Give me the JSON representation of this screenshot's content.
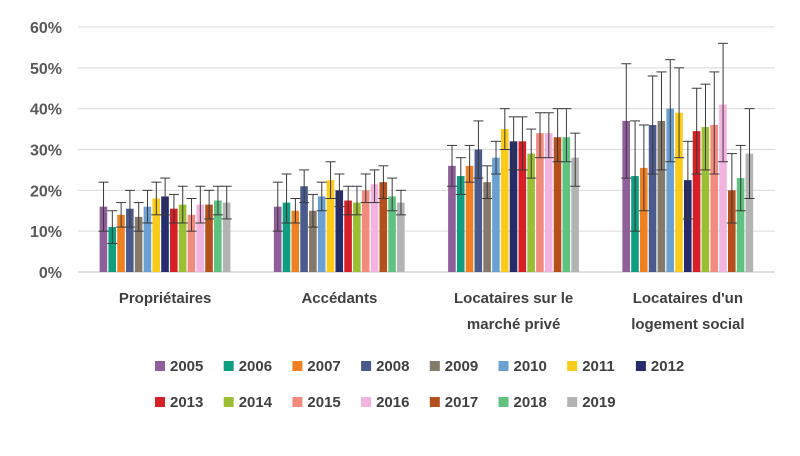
{
  "chart_data": {
    "type": "bar",
    "title": "",
    "xlabel": "",
    "ylabel": "",
    "ylim": [
      0,
      60
    ],
    "yticks": [
      "0%",
      "10%",
      "20%",
      "30%",
      "40%",
      "50%",
      "60%"
    ],
    "grid": "horizontal",
    "legend_position": "bottom",
    "error_bars": true,
    "categories": [
      [
        "Propriétaires"
      ],
      [
        "Accédants"
      ],
      [
        "Locataires sur le",
        "marché privé"
      ],
      [
        "Locataires d'un",
        "logement social"
      ]
    ],
    "series": [
      {
        "name": "2005",
        "color": "#8e5f9a",
        "values": [
          16,
          16,
          26,
          37
        ],
        "err_low": [
          10,
          10,
          21,
          23
        ],
        "err_high": [
          22,
          22,
          31,
          51
        ]
      },
      {
        "name": "2006",
        "color": "#0f9e82",
        "values": [
          11,
          17,
          23.5,
          23.5
        ],
        "err_low": [
          7,
          12,
          19,
          10
        ],
        "err_high": [
          15,
          24,
          28,
          37
        ]
      },
      {
        "name": "2007",
        "color": "#f08122",
        "values": [
          14,
          15,
          26,
          25.5
        ],
        "err_low": [
          11,
          12,
          22,
          15
        ],
        "err_high": [
          17,
          18,
          31,
          36
        ]
      },
      {
        "name": "2008",
        "color": "#4a5a8c",
        "values": [
          15.5,
          21,
          30,
          36
        ],
        "err_low": [
          11,
          17,
          23,
          24
        ],
        "err_high": [
          20,
          25,
          37,
          48
        ]
      },
      {
        "name": "2009",
        "color": "#857969",
        "values": [
          13.5,
          15,
          22,
          37
        ],
        "err_low": [
          10,
          11,
          18,
          25
        ],
        "err_high": [
          17,
          19,
          26,
          49
        ]
      },
      {
        "name": "2010",
        "color": "#6ca0d2",
        "values": [
          16,
          18.5,
          28,
          40
        ],
        "err_low": [
          12,
          15,
          24,
          27
        ],
        "err_high": [
          20,
          22,
          32,
          52
        ]
      },
      {
        "name": "2011",
        "color": "#fbcb19",
        "values": [
          18,
          22.5,
          35,
          39
        ],
        "err_low": [
          14,
          18,
          30,
          28
        ],
        "err_high": [
          22,
          27,
          40,
          50
        ]
      },
      {
        "name": "2012",
        "color": "#262b6b",
        "values": [
          18.5,
          20,
          32,
          22.5
        ],
        "err_low": [
          14,
          16,
          25,
          13
        ],
        "err_high": [
          23,
          24,
          38,
          32
        ]
      },
      {
        "name": "2013",
        "color": "#d61f26",
        "values": [
          15.5,
          17.5,
          32,
          34.5
        ],
        "err_low": [
          12,
          14,
          25,
          24
        ],
        "err_high": [
          19,
          21,
          38,
          45
        ]
      },
      {
        "name": "2014",
        "color": "#9bbf34",
        "values": [
          16.5,
          17,
          29,
          35.5
        ],
        "err_low": [
          12,
          14,
          23,
          25
        ],
        "err_high": [
          21,
          21,
          35,
          46
        ]
      },
      {
        "name": "2015",
        "color": "#f28a7e",
        "values": [
          14,
          20,
          34,
          36
        ],
        "err_low": [
          10,
          17,
          28,
          24
        ],
        "err_high": [
          18,
          24,
          39,
          49
        ]
      },
      {
        "name": "2016",
        "color": "#f2b3de",
        "values": [
          16.5,
          21.5,
          34,
          41
        ],
        "err_low": [
          12,
          17,
          28,
          27
        ],
        "err_high": [
          21,
          25,
          39,
          56
        ]
      },
      {
        "name": "2017",
        "color": "#b5501d",
        "values": [
          16.5,
          22,
          33,
          20
        ],
        "err_low": [
          13,
          18,
          27,
          12
        ],
        "err_high": [
          20,
          26,
          40,
          29
        ]
      },
      {
        "name": "2018",
        "color": "#5fc281",
        "values": [
          17.5,
          18.5,
          33,
          23
        ],
        "err_low": [
          14,
          15,
          27,
          15
        ],
        "err_high": [
          21,
          23,
          40,
          31
        ]
      },
      {
        "name": "2019",
        "color": "#b3b3b3",
        "values": [
          17,
          17,
          28,
          29
        ],
        "err_low": [
          13,
          14,
          21,
          18
        ],
        "err_high": [
          21,
          20,
          34,
          40
        ]
      }
    ]
  }
}
